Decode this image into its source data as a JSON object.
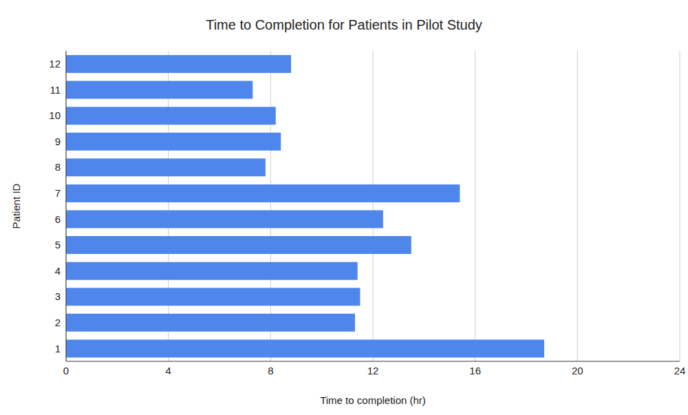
{
  "chart_data": {
    "type": "bar",
    "title": "Time to Completion for Patients in Pilot Study",
    "orientation": "horizontal",
    "categories": [
      "1",
      "2",
      "3",
      "4",
      "5",
      "6",
      "7",
      "8",
      "9",
      "10",
      "11",
      "12"
    ],
    "values": [
      18.7,
      11.3,
      11.5,
      11.4,
      13.5,
      12.4,
      15.4,
      7.8,
      8.4,
      8.2,
      7.3,
      8.8
    ],
    "color": "#4f86ec",
    "x_label": "Time to completion (hr)",
    "y_label": "Patient ID",
    "xlim": [
      0,
      24
    ],
    "xticks": [
      0,
      4,
      8,
      12,
      16,
      20,
      24
    ],
    "grid": true
  }
}
